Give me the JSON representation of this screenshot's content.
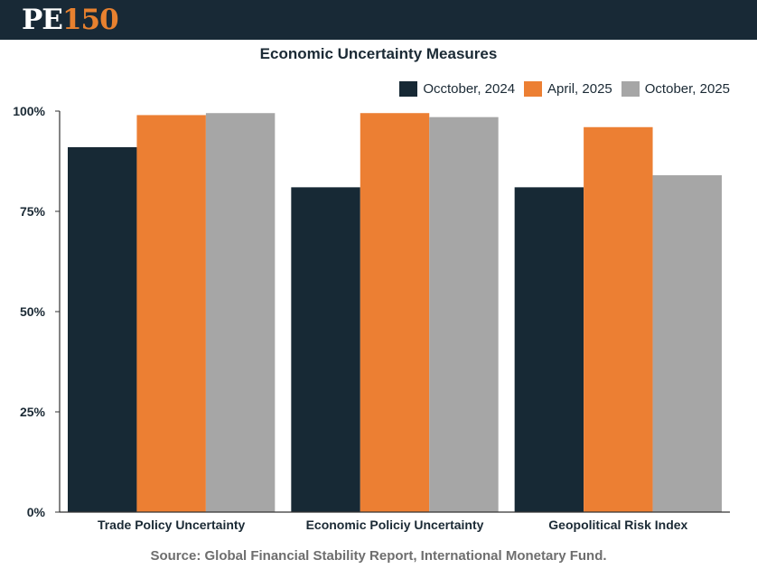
{
  "brand": {
    "prefix": "PE",
    "number": "150"
  },
  "footer": {
    "source": "Source: Global Financial Stability Report, International Monetary Fund."
  },
  "chart_data": {
    "type": "bar",
    "title": "Economic Uncertainty Measures",
    "categories": [
      "Trade Policy Uncertainty",
      "Economic Policiy Uncertainty",
      "Geopolitical Risk Index"
    ],
    "series": [
      {
        "name": "Occtober, 2024",
        "color": "#172935",
        "values": [
          91,
          81,
          81
        ]
      },
      {
        "name": "April, 2025",
        "color": "#ec7f33",
        "values": [
          99,
          99.5,
          96
        ]
      },
      {
        "name": "October, 2025",
        "color": "#a6a6a6",
        "values": [
          99.5,
          98.5,
          84
        ]
      }
    ],
    "ylim": [
      0,
      100
    ],
    "yticks": [
      0,
      25,
      50,
      75,
      100
    ],
    "ytick_labels": [
      "0%",
      "25%",
      "50%",
      "75%",
      "100%"
    ],
    "xlabel": "",
    "ylabel": "",
    "legend_position": "top-right",
    "grid": false
  }
}
